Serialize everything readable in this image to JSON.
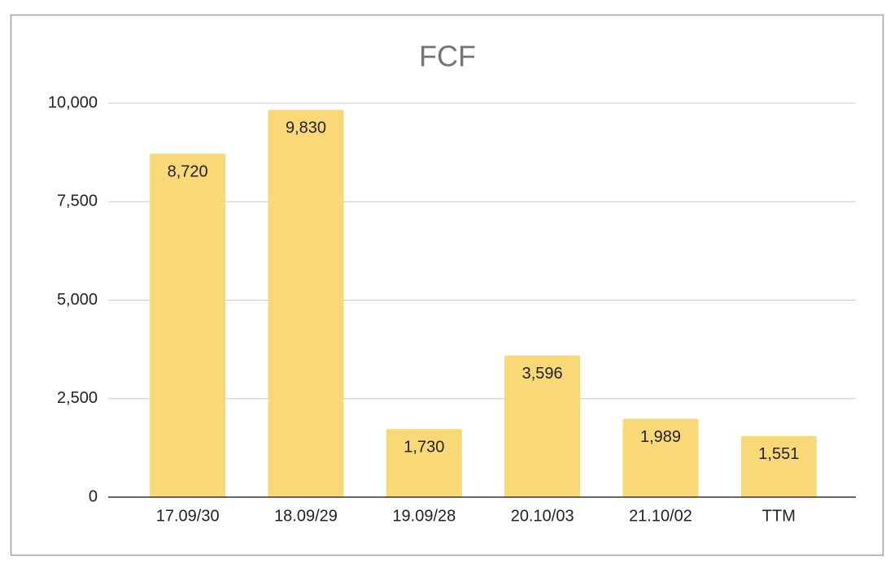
{
  "chart_data": {
    "type": "bar",
    "title": "FCF",
    "categories": [
      "17.09/30",
      "18.09/29",
      "19.09/28",
      "20.10/03",
      "21.10/02",
      "TTM"
    ],
    "values": [
      8720,
      9830,
      1730,
      3596,
      1989,
      1551
    ],
    "value_labels": [
      "8,720",
      "9,830",
      "1,730",
      "3,596",
      "1,989",
      "1,551"
    ],
    "color": "#f9d977",
    "ylim": [
      0,
      10000
    ],
    "yticks": [
      0,
      {
        "value": 2500,
        "label": "2,500"
      },
      {
        "value": 5000,
        "label": "5,000"
      },
      {
        "value": 7500,
        "label": "7,500"
      },
      {
        "value": 10000,
        "label": "10,000"
      }
    ],
    "grid": true
  }
}
